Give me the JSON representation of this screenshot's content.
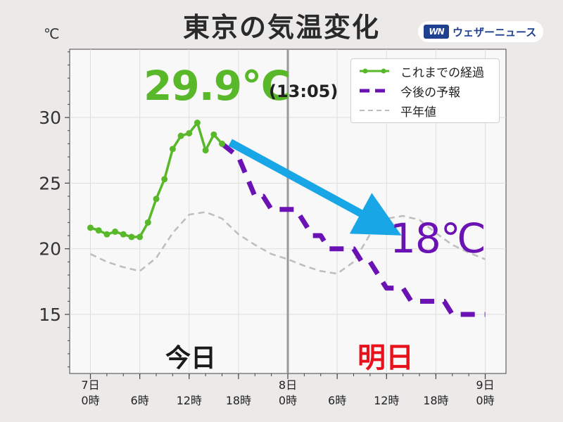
{
  "title": "東京の気温変化",
  "unit": "℃",
  "brand": {
    "logo": "WN",
    "name": "ウェザーニュース"
  },
  "annotations": {
    "max_temp": "29.9℃",
    "max_time": "(13:05)",
    "forecast_temp": "18℃",
    "today": "今日",
    "tomorrow": "明日"
  },
  "colors": {
    "observed": "#58b82a",
    "forecast": "#6a12b4",
    "normal": "#bdbdbd",
    "arrow": "#19a6e6",
    "tomorrow_text": "#e8101a"
  },
  "legend": [
    {
      "label": "これまでの経過",
      "style": "line-with-markers",
      "color": "#58b82a"
    },
    {
      "label": "今後の予報",
      "style": "dashed-thick",
      "color": "#6a12b4"
    },
    {
      "label": "平年値",
      "style": "dashed-thin",
      "color": "#bdbdbd"
    }
  ],
  "chart_data": {
    "type": "line",
    "title": "東京の気温変化",
    "ylabel": "℃",
    "xlabel": "",
    "xlim": [
      0,
      48
    ],
    "ylim": [
      10.5,
      35.2
    ],
    "y_ticks": [
      15,
      20,
      25,
      30
    ],
    "grid": true,
    "legend_position": "top-right",
    "x_tick_labels": [
      {
        "x": 0,
        "lines": [
          "7日",
          "0時"
        ]
      },
      {
        "x": 6,
        "lines": [
          "6時"
        ]
      },
      {
        "x": 12,
        "lines": [
          "12時"
        ]
      },
      {
        "x": 18,
        "lines": [
          "18時"
        ]
      },
      {
        "x": 24,
        "lines": [
          "8日",
          "0時"
        ]
      },
      {
        "x": 30,
        "lines": [
          "6時"
        ]
      },
      {
        "x": 36,
        "lines": [
          "12時"
        ]
      },
      {
        "x": 42,
        "lines": [
          "18時"
        ]
      },
      {
        "x": 48,
        "lines": [
          "9日",
          "0時"
        ]
      }
    ],
    "day_divider_x": 24,
    "series": [
      {
        "name": "これまでの経過",
        "x": [
          0,
          1,
          2,
          3,
          4,
          5,
          6,
          7,
          8,
          9,
          10,
          11,
          12,
          13,
          14,
          15,
          16
        ],
        "y": [
          21.6,
          21.4,
          21.1,
          21.3,
          21.1,
          20.9,
          20.9,
          22.0,
          23.8,
          25.3,
          27.6,
          28.6,
          28.8,
          29.6,
          27.5,
          28.7,
          28.0
        ]
      },
      {
        "name": "今後の予報",
        "x": [
          16,
          17,
          18,
          19,
          20,
          21,
          22,
          23,
          24,
          25,
          26,
          27,
          28,
          29,
          30,
          31,
          32,
          33,
          34,
          35,
          36,
          37,
          38,
          39,
          40,
          41,
          42,
          43,
          44,
          45,
          46,
          47,
          48
        ],
        "y": [
          28.0,
          27.5,
          27.0,
          25.5,
          24.0,
          24.0,
          23.0,
          23.0,
          23.0,
          23.0,
          22.0,
          21.0,
          21.0,
          20.0,
          20.0,
          20.0,
          20.0,
          19.0,
          19.0,
          18.0,
          17.0,
          17.0,
          17.0,
          16.0,
          16.0,
          16.0,
          16.0,
          16.0,
          15.0,
          15.0,
          15.0,
          15.0,
          15.0
        ]
      },
      {
        "name": "平年値",
        "x": [
          0,
          2,
          4,
          6,
          8,
          10,
          12,
          14,
          16,
          18,
          20,
          22,
          24,
          26,
          28,
          30,
          32,
          34,
          36,
          38,
          40,
          42,
          44,
          46,
          48
        ],
        "y": [
          19.6,
          19.0,
          18.6,
          18.3,
          19.3,
          21.2,
          22.6,
          22.8,
          22.3,
          21.1,
          20.3,
          19.6,
          19.2,
          18.7,
          18.3,
          18.1,
          19.0,
          21.1,
          22.3,
          22.5,
          22.2,
          21.2,
          20.3,
          19.7,
          19.2
        ]
      }
    ]
  }
}
